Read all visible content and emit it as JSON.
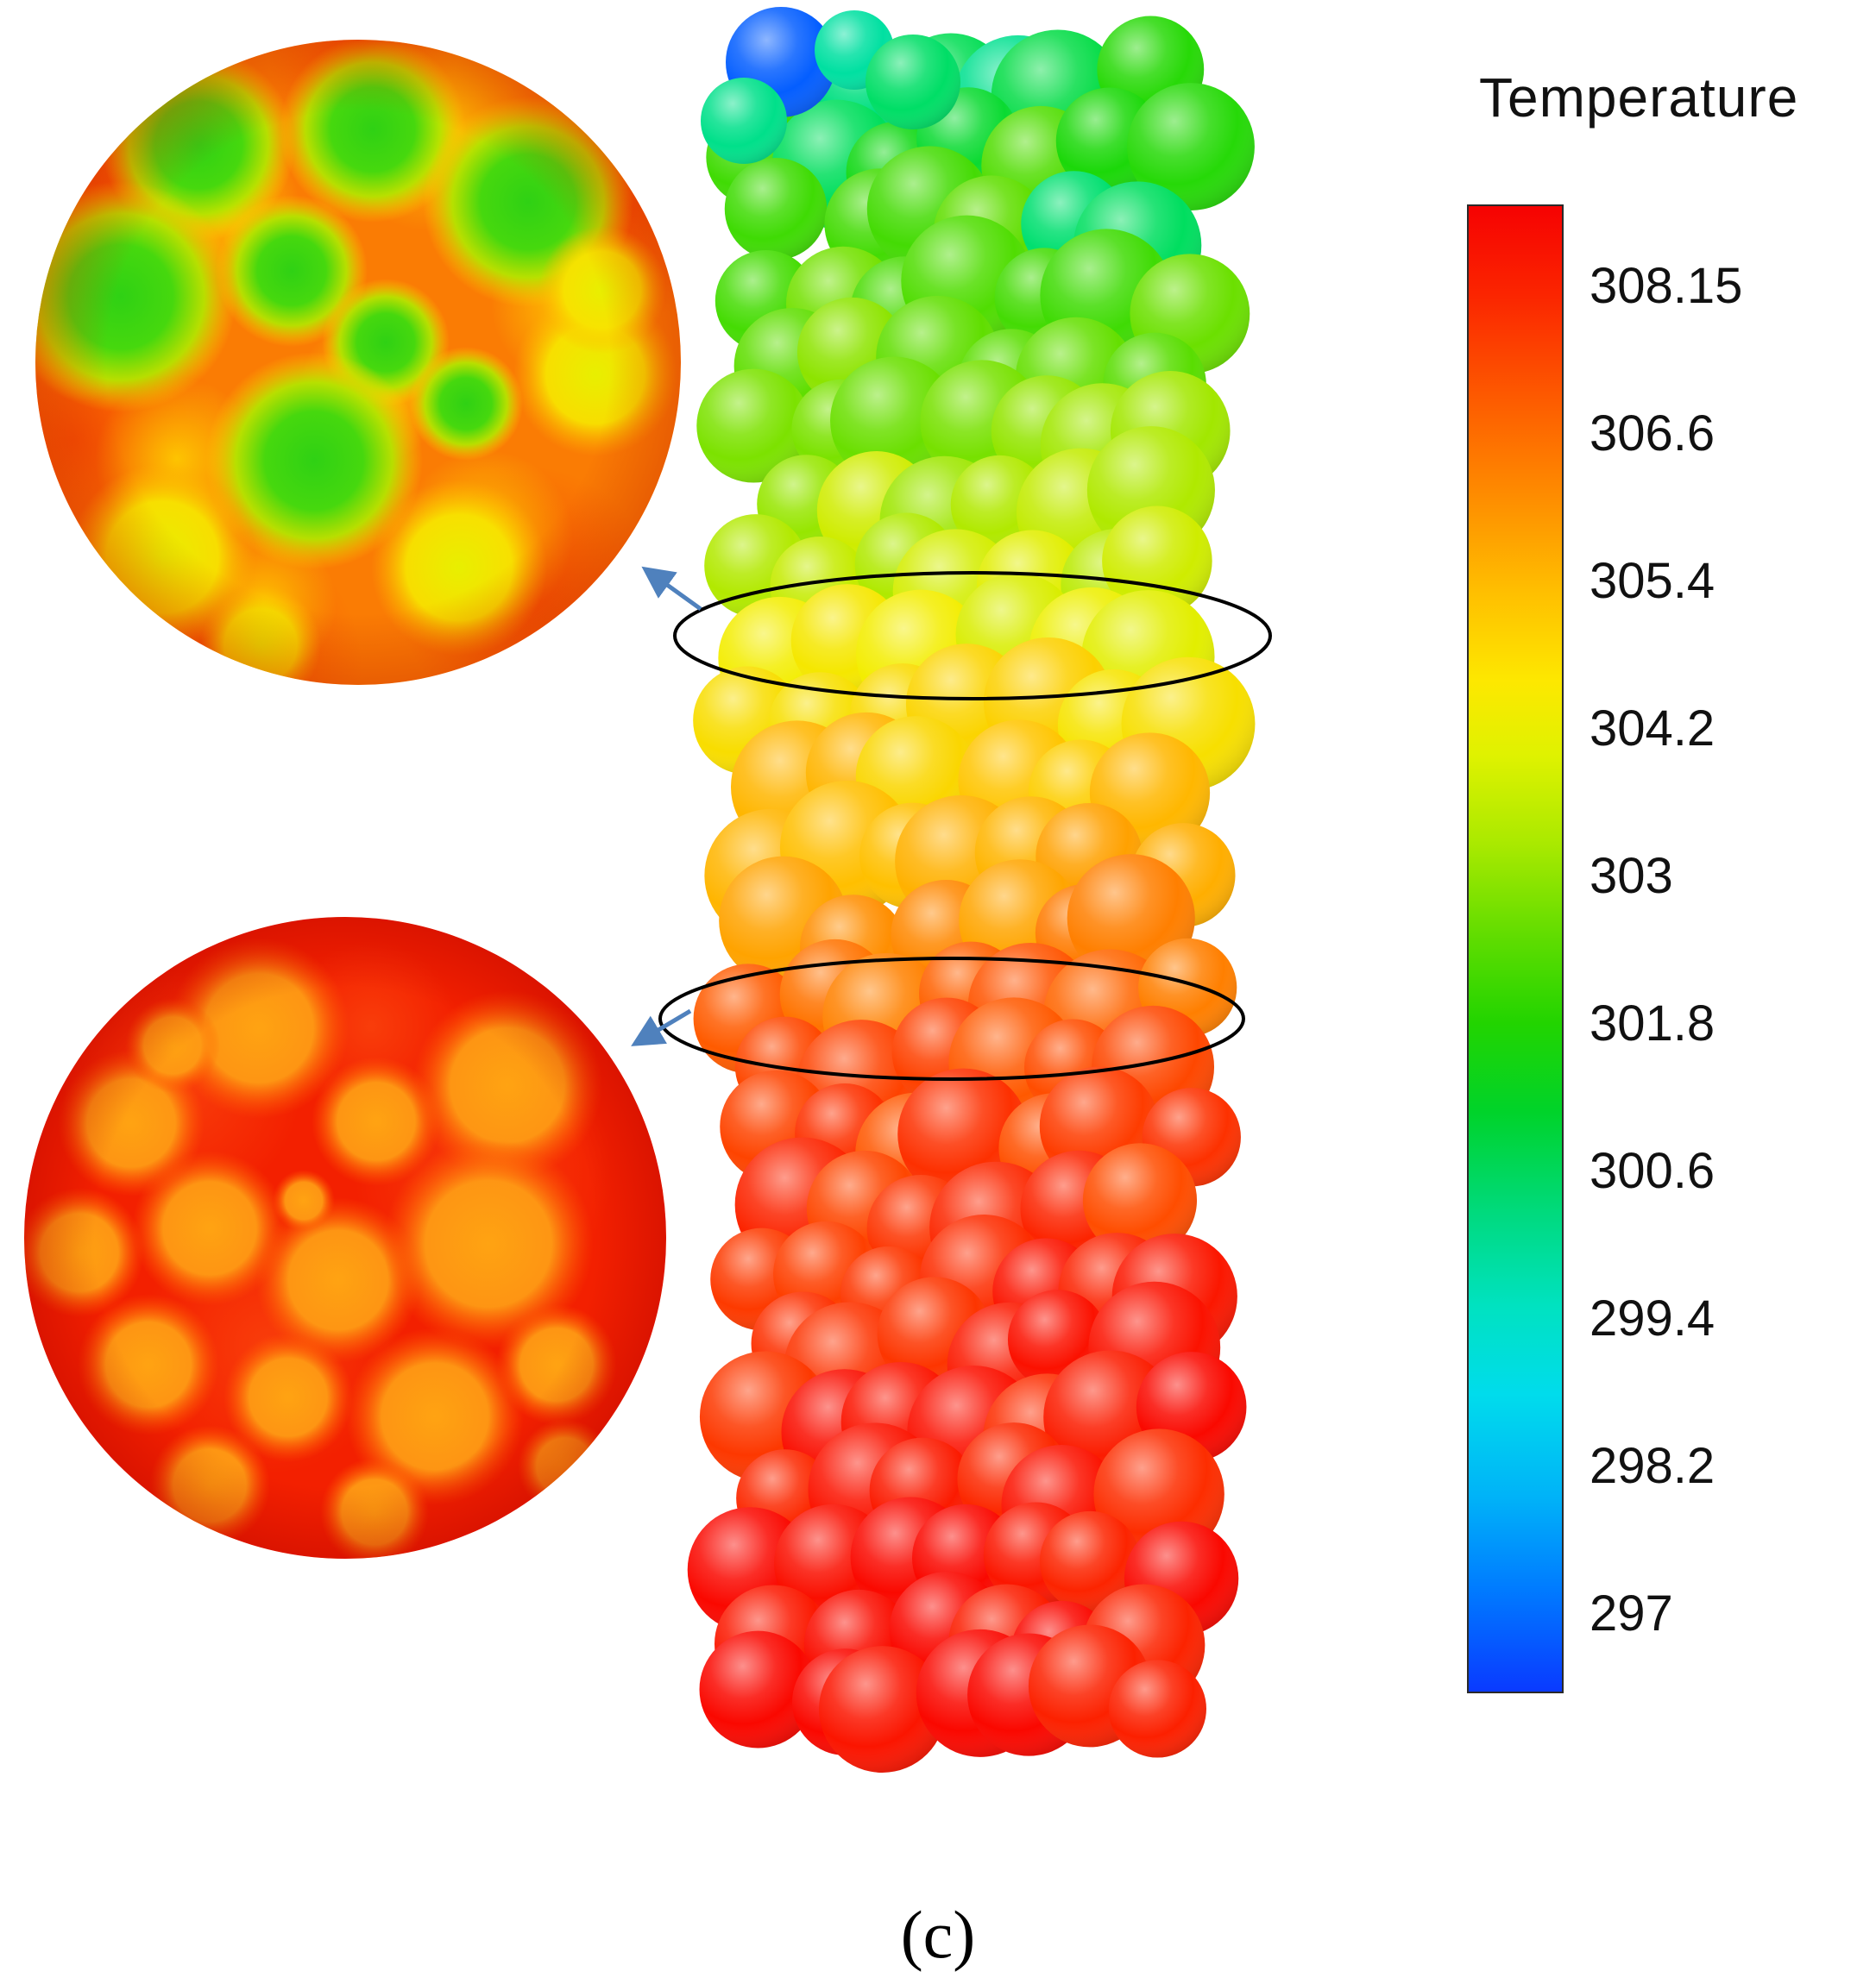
{
  "figure": {
    "caption": "(c)",
    "background": "#ffffff",
    "description": "Temperature contour of a vertical packed bed of spheres with two circular cross-section insets linked by blue arrows to two black ellipses on the column"
  },
  "legend": {
    "title": "Temperature",
    "tick_labels": [
      "308.15",
      "306.6",
      "305.4",
      "304.2",
      "303",
      "301.8",
      "300.6",
      "299.4",
      "298.2",
      "297"
    ]
  },
  "annotations": {
    "arrow_color": "#4f81bd",
    "ellipse_stroke": "#000000"
  },
  "chart_data": {
    "type": "heatmap",
    "title": "Temperature",
    "colorbar": {
      "title": "Temperature",
      "orientation": "vertical",
      "ticks": [
        308.15,
        306.6,
        305.4,
        304.2,
        303,
        301.8,
        300.6,
        299.4,
        298.2,
        297
      ],
      "range": [
        297,
        308.15
      ],
      "colormap": "rainbow: red (308.15) at top through orange, yellow, green, cyan to blue (297) at bottom"
    },
    "content": {
      "column": "vertical packed bed of spheres; cold green/cyan spheres (~301-304) at top grading to hot red spheres (~308) at bottom; one blue sphere (~297) at the very top left",
      "upper_section": "black ellipse on column upper-middle marks cross-section shown in top-left inset: green and yellow sphere sections (~303-305) in an orange matrix (~306)",
      "lower_section": "black ellipse on column middle marks cross-section shown in bottom-left inset: orange sphere sections (~306) in a red matrix (~308)",
      "caption": "(c)"
    }
  }
}
